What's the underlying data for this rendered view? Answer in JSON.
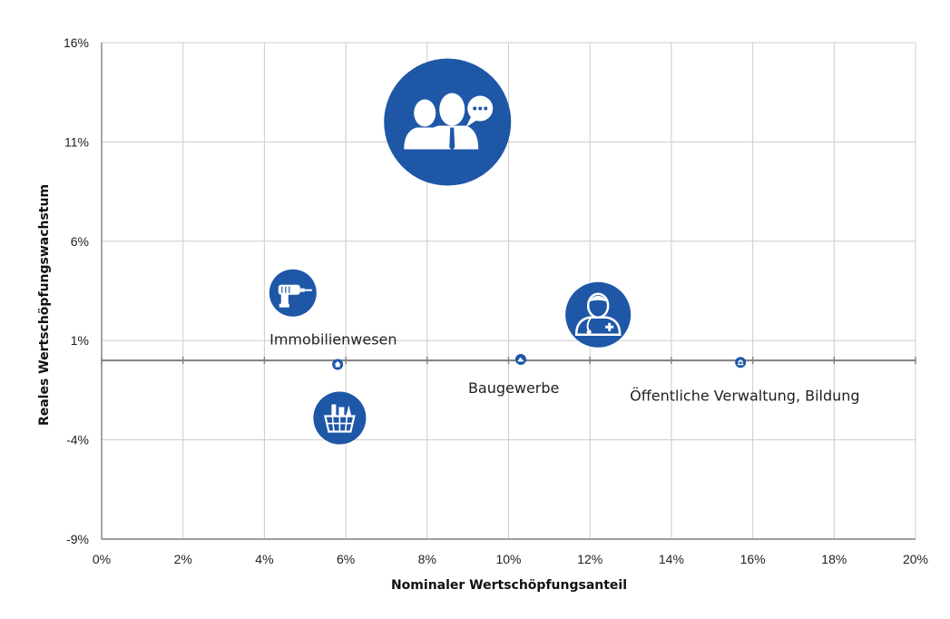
{
  "chart_data": {
    "type": "scatter",
    "title": "",
    "xlabel": "Nominaler Wertschöpfungsanteil",
    "ylabel": "Reales Wertschöpfungswachstum",
    "xlim": [
      0,
      20
    ],
    "ylim": [
      -9,
      16
    ],
    "x_ticks": [
      "0%",
      "2%",
      "4%",
      "6%",
      "8%",
      "10%",
      "12%",
      "14%",
      "16%",
      "18%",
      "20%"
    ],
    "y_ticks": [
      "-9%",
      "-4%",
      "1%",
      "6%",
      "11%",
      "16%"
    ],
    "grid": true,
    "colors": {
      "bubble": "#1f57a7",
      "icon": "#ffffff",
      "axis": "#7f7f7f",
      "grid": "#cccccc"
    },
    "points": [
      {
        "x": 8.5,
        "y": 12.0,
        "size": 70,
        "icon": "people-chat-icon",
        "label": ""
      },
      {
        "x": 4.7,
        "y": 3.4,
        "size": 26,
        "icon": "drill-icon",
        "label": ""
      },
      {
        "x": 12.2,
        "y": 2.3,
        "size": 36,
        "icon": "doctor-icon",
        "label": ""
      },
      {
        "x": 5.85,
        "y": -2.9,
        "size": 29,
        "icon": "shopping-basket-icon",
        "label": ""
      },
      {
        "x": 5.8,
        "y": -0.2,
        "size": 6,
        "icon": "house-icon",
        "label": "Immobilienwesen"
      },
      {
        "x": 10.3,
        "y": 0.05,
        "size": 6,
        "icon": "construction-icon",
        "label": "Baugewerbe"
      },
      {
        "x": 15.7,
        "y": -0.1,
        "size": 6,
        "icon": "government-icon",
        "label": "Öffentliche Verwaltung, Bildung"
      }
    ]
  }
}
